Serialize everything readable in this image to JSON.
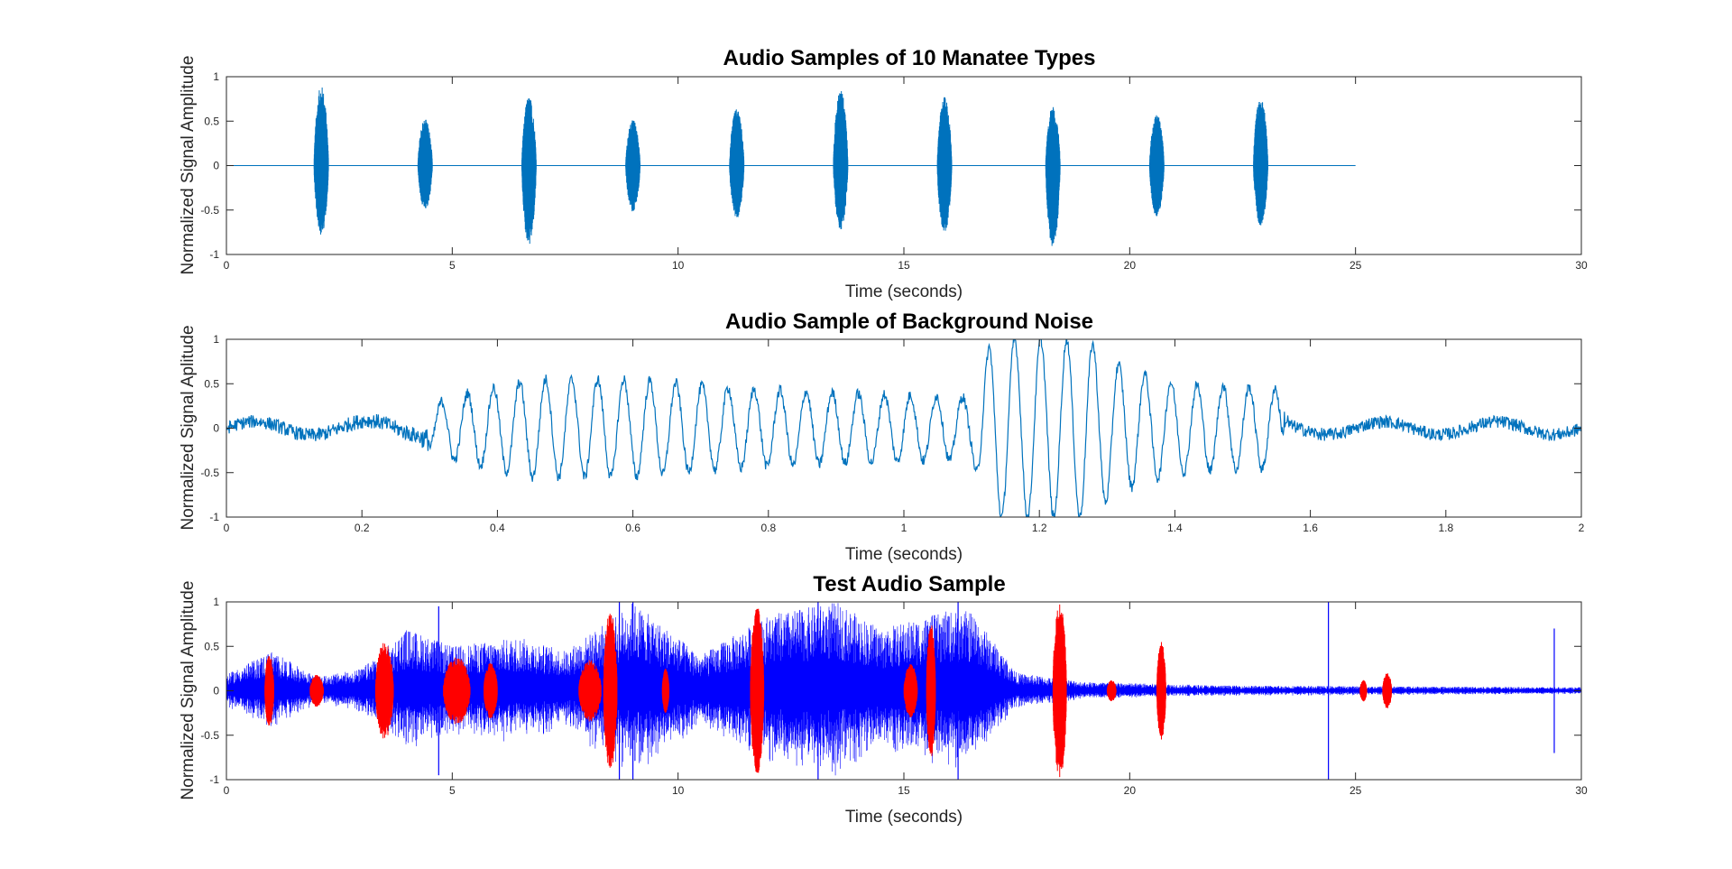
{
  "chart_data": [
    {
      "type": "line",
      "title": "Audio Samples of 10 Manatee Types",
      "xlabel": "Time (seconds)",
      "ylabel": "Normalized Signal Amplitude",
      "xlim": [
        0,
        30
      ],
      "ylim": [
        -1,
        1
      ],
      "xticks": [
        0,
        5,
        10,
        15,
        20,
        25,
        30
      ],
      "yticks": [
        -1,
        -0.5,
        0,
        0.5,
        1
      ],
      "signal_end": 25,
      "series": [
        {
          "color": "#0072BD",
          "bursts": [
            {
              "t": 2.1,
              "amp_pos": 0.9,
              "amp_neg": 0.78
            },
            {
              "t": 4.4,
              "amp_pos": 0.53,
              "amp_neg": 0.5
            },
            {
              "t": 6.7,
              "amp_pos": 0.78,
              "amp_neg": 0.9
            },
            {
              "t": 9.0,
              "amp_pos": 0.52,
              "amp_neg": 0.52
            },
            {
              "t": 11.3,
              "amp_pos": 0.65,
              "amp_neg": 0.6
            },
            {
              "t": 13.6,
              "amp_pos": 0.88,
              "amp_neg": 0.72
            },
            {
              "t": 15.9,
              "amp_pos": 0.78,
              "amp_neg": 0.76
            },
            {
              "t": 18.3,
              "amp_pos": 0.67,
              "amp_neg": 0.92
            },
            {
              "t": 20.6,
              "amp_pos": 0.58,
              "amp_neg": 0.58
            },
            {
              "t": 22.9,
              "amp_pos": 0.78,
              "amp_neg": 0.68
            }
          ]
        }
      ]
    },
    {
      "type": "line",
      "title": "Audio Sample of Background Noise",
      "xlabel": "Time (seconds)",
      "ylabel": "Normalized Signal Aplitude",
      "xlim": [
        0,
        2
      ],
      "ylim": [
        -1,
        1
      ],
      "xticks": [
        0,
        0.2,
        0.4,
        0.6,
        0.8,
        1,
        1.2,
        1.4,
        1.6,
        1.8,
        2
      ],
      "yticks": [
        -1,
        -0.5,
        0,
        0.5,
        1
      ],
      "series": [
        {
          "color": "#0072BD",
          "envelope": [
            {
              "t": 0.0,
              "amp": 0.12
            },
            {
              "t": 0.28,
              "amp": 0.15
            },
            {
              "t": 0.33,
              "amp": 0.35
            },
            {
              "t": 0.45,
              "amp": 0.55
            },
            {
              "t": 0.6,
              "amp": 0.55
            },
            {
              "t": 0.75,
              "amp": 0.45
            },
            {
              "t": 0.9,
              "amp": 0.4
            },
            {
              "t": 1.1,
              "amp": 0.35
            },
            {
              "t": 1.13,
              "amp": 1.0
            },
            {
              "t": 1.27,
              "amp": 1.0
            },
            {
              "t": 1.32,
              "amp": 0.7
            },
            {
              "t": 1.4,
              "amp": 0.5
            },
            {
              "t": 1.55,
              "amp": 0.45
            },
            {
              "t": 1.57,
              "amp": 0.12
            },
            {
              "t": 2.0,
              "amp": 0.12
            }
          ]
        }
      ]
    },
    {
      "type": "scatter",
      "title": "Test Audio Sample",
      "xlabel": "Time (seconds)",
      "ylabel": "Normalized Signal Amplitude",
      "xlim": [
        0,
        30
      ],
      "ylim": [
        -1,
        1
      ],
      "xticks": [
        0,
        5,
        10,
        15,
        20,
        25,
        30
      ],
      "yticks": [
        -1,
        -0.5,
        0,
        0.5,
        1
      ],
      "series": [
        {
          "color": "#0000FF",
          "envelope": [
            {
              "t": 0.0,
              "amp": 0.18
            },
            {
              "t": 1.0,
              "amp": 0.45
            },
            {
              "t": 2.0,
              "amp": 0.15
            },
            {
              "t": 3.0,
              "amp": 0.25
            },
            {
              "t": 4.0,
              "amp": 0.7
            },
            {
              "t": 5.0,
              "amp": 0.5
            },
            {
              "t": 6.5,
              "amp": 0.6
            },
            {
              "t": 7.5,
              "amp": 0.45
            },
            {
              "t": 8.5,
              "amp": 0.8
            },
            {
              "t": 9.0,
              "amp": 1.0
            },
            {
              "t": 10.5,
              "amp": 0.4
            },
            {
              "t": 12.0,
              "amp": 0.85
            },
            {
              "t": 13.5,
              "amp": 1.0
            },
            {
              "t": 14.5,
              "amp": 0.7
            },
            {
              "t": 16.0,
              "amp": 0.9
            },
            {
              "t": 16.5,
              "amp": 0.9
            },
            {
              "t": 17.5,
              "amp": 0.2
            },
            {
              "t": 19.0,
              "amp": 0.1
            },
            {
              "t": 22.0,
              "amp": 0.06
            },
            {
              "t": 26.0,
              "amp": 0.05
            },
            {
              "t": 30.0,
              "amp": 0.04
            }
          ],
          "spikes": [
            {
              "t": 4.7,
              "amp": 0.95
            },
            {
              "t": 8.7,
              "amp": 1.0
            },
            {
              "t": 9.0,
              "amp": 1.0
            },
            {
              "t": 13.1,
              "amp": 1.0
            },
            {
              "t": 16.2,
              "amp": 1.0
            },
            {
              "t": 24.4,
              "amp": 1.0
            },
            {
              "t": 29.4,
              "amp": 0.7
            }
          ]
        },
        {
          "color": "#FF0000",
          "segments": [
            {
              "t0": 0.85,
              "t1": 1.05,
              "amp": 0.4
            },
            {
              "t0": 1.85,
              "t1": 2.15,
              "amp": 0.18
            },
            {
              "t0": 3.3,
              "t1": 3.7,
              "amp": 0.55
            },
            {
              "t0": 4.8,
              "t1": 5.4,
              "amp": 0.38
            },
            {
              "t0": 5.7,
              "t1": 6.0,
              "amp": 0.32
            },
            {
              "t0": 7.8,
              "t1": 8.3,
              "amp": 0.35
            },
            {
              "t0": 8.35,
              "t1": 8.65,
              "amp": 0.9
            },
            {
              "t0": 9.65,
              "t1": 9.8,
              "amp": 0.25
            },
            {
              "t0": 11.6,
              "t1": 11.9,
              "amp": 0.95
            },
            {
              "t0": 15.0,
              "t1": 15.3,
              "amp": 0.3
            },
            {
              "t0": 15.5,
              "t1": 15.7,
              "amp": 0.75
            },
            {
              "t0": 18.3,
              "t1": 18.6,
              "amp": 1.0
            },
            {
              "t0": 19.5,
              "t1": 19.7,
              "amp": 0.12
            },
            {
              "t0": 20.6,
              "t1": 20.8,
              "amp": 0.55
            },
            {
              "t0": 25.1,
              "t1": 25.25,
              "amp": 0.12
            },
            {
              "t0": 25.6,
              "t1": 25.8,
              "amp": 0.2
            }
          ]
        }
      ]
    }
  ]
}
